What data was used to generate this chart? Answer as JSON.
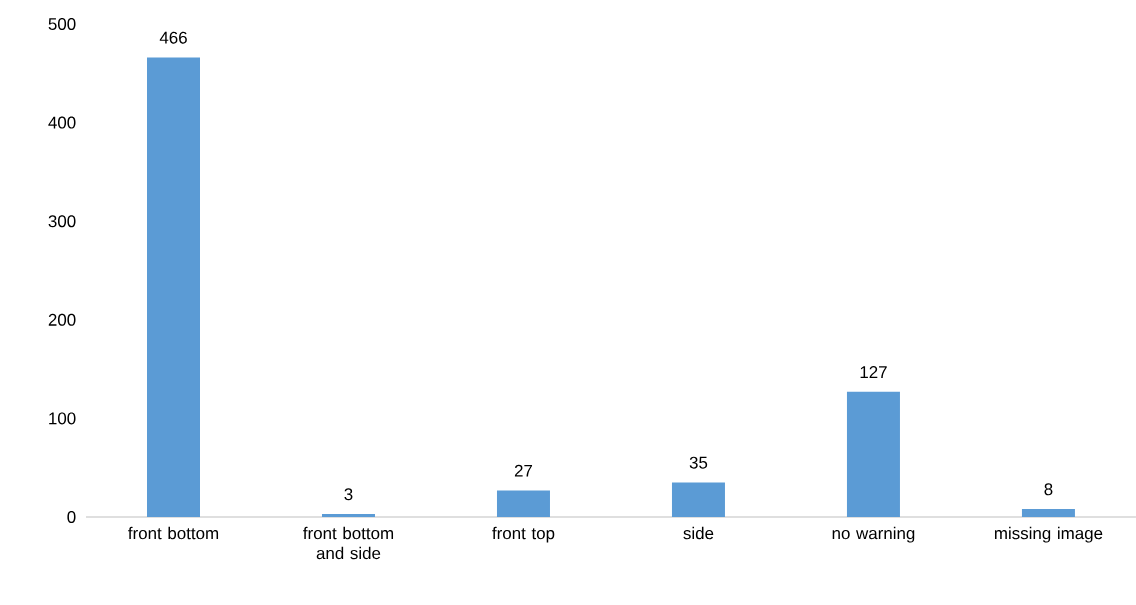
{
  "chart_data": {
    "type": "bar",
    "categories": [
      "front bottom",
      "front bottom and side",
      "front top",
      "side",
      "no warning",
      "missing image"
    ],
    "values": [
      466,
      3,
      27,
      35,
      127,
      8
    ],
    "color": "#5b9bd5",
    "ylim": [
      0,
      500
    ],
    "yticks": [
      0,
      100,
      200,
      300,
      400,
      500
    ],
    "data_labels": true,
    "grid": false
  }
}
